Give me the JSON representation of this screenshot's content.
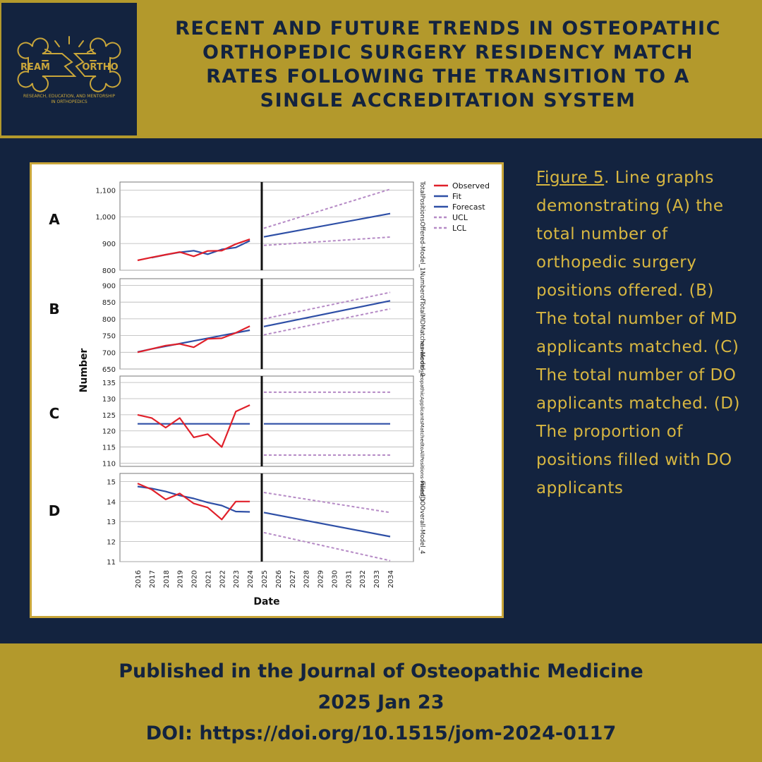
{
  "header": {
    "title_lines": [
      "RECENT AND FUTURE TRENDS IN OSTEOPATHIC",
      "ORTHOPEDIC SURGERY RESIDENCY MATCH",
      "RATES FOLLOWING THE TRANSITION TO A",
      "SINGLE ACCREDITATION SYSTEM"
    ]
  },
  "logo": {
    "left_word": "REAM",
    "right_word": "ORTHO",
    "tagline_1": "RESEARCH, EDUCATION, AND MENTORSHIP",
    "tagline_2": "IN ORTHOPEDICS"
  },
  "caption": {
    "figure_label": "Figure 5",
    "text": ". Line graphs demonstrating (A) the total number of orthopedic surgery positions offered. (B) The total number of MD applicants matched. (C) The total number of DO applicants matched. (D) The proportion of positions filled with DO applicants"
  },
  "footer": {
    "line1": "Published in the Journal of Osteopathic Medicine",
    "line2": "2025 Jan 23",
    "line3": "DOI: https://doi.org/10.1515/jom-2024-0117"
  },
  "colors": {
    "navy": "#13233f",
    "gold": "#b3992c",
    "caption_gold": "#d8b741",
    "observed": "#e0202a",
    "fit": "#2e4fa6",
    "limit": "#b68bc6"
  },
  "chart_data": {
    "type": "line",
    "xlabel": "Date",
    "ylabel": "Number",
    "x_ticks": [
      "2016",
      "2017",
      "2018",
      "2019",
      "2020",
      "2021",
      "2022",
      "2023",
      "2024",
      "2025",
      "2026",
      "2027",
      "2028",
      "2029",
      "2030",
      "2031",
      "2032",
      "2033",
      "2034"
    ],
    "legend": [
      "Observed",
      "Fit",
      "Forecast",
      "UCL",
      "LCL"
    ],
    "panels": [
      {
        "letter": "A",
        "model_label": "TotalPositionsOffered-Model_1",
        "ylim": [
          800,
          1130
        ],
        "yticks": [
          800,
          900,
          1000,
          1100
        ],
        "ytick_labels": [
          "800",
          "900",
          "1,000",
          "1,100"
        ],
        "observed": {
          "x": [
            2016,
            2017,
            2018,
            2019,
            2020,
            2021,
            2022,
            2023,
            2024
          ],
          "y": [
            837,
            848,
            858,
            868,
            852,
            872,
            873,
            898,
            916
          ]
        },
        "fit": {
          "x": [
            2017,
            2018,
            2019,
            2020,
            2021,
            2022,
            2023,
            2024
          ],
          "y": [
            847,
            858,
            867,
            873,
            860,
            878,
            885,
            910
          ]
        },
        "forecast": {
          "x": [
            2025,
            2034
          ],
          "y": [
            925,
            1012
          ]
        },
        "ucl": {
          "x": [
            2025,
            2034
          ],
          "y": [
            957,
            1103
          ]
        },
        "lcl": {
          "x": [
            2025,
            2034
          ],
          "y": [
            893,
            924
          ]
        }
      },
      {
        "letter": "B",
        "model_label": "NumberofTotalMDMatches-Model_2",
        "ylim": [
          650,
          920
        ],
        "yticks": [
          650,
          700,
          750,
          800,
          850,
          900
        ],
        "ytick_labels": [
          "650",
          "700",
          "750",
          "800",
          "850",
          "900"
        ],
        "observed": {
          "x": [
            2016,
            2017,
            2018,
            2019,
            2020,
            2021,
            2022,
            2023,
            2024
          ],
          "y": [
            700,
            710,
            720,
            725,
            715,
            740,
            742,
            758,
            778
          ]
        },
        "fit": {
          "x": [
            2016,
            2017,
            2018,
            2019,
            2020,
            2021,
            2022,
            2023,
            2024
          ],
          "y": [
            701,
            710,
            718,
            726,
            734,
            742,
            750,
            758,
            766
          ]
        },
        "forecast": {
          "x": [
            2025,
            2034
          ],
          "y": [
            777,
            854
          ]
        },
        "ucl": {
          "x": [
            2025,
            2034
          ],
          "y": [
            800,
            879
          ]
        },
        "lcl": {
          "x": [
            2025,
            2034
          ],
          "y": [
            752,
            830
          ]
        }
      },
      {
        "letter": "C",
        "model_label": "NumberofOsteopathicApplicantsMatchedtoAllPositions-Model_3",
        "ylim": [
          109,
          137
        ],
        "yticks": [
          110,
          115,
          120,
          125,
          130,
          135
        ],
        "ytick_labels": [
          "110",
          "115",
          "120",
          "125",
          "130",
          "135"
        ],
        "observed": {
          "x": [
            2016,
            2017,
            2018,
            2019,
            2020,
            2021,
            2022,
            2023,
            2024
          ],
          "y": [
            125,
            124,
            121,
            124,
            118,
            119,
            115,
            126,
            128
          ]
        },
        "fit": {
          "x": [
            2016,
            2024
          ],
          "y": [
            122.2,
            122.2
          ]
        },
        "forecast": {
          "x": [
            2025,
            2034
          ],
          "y": [
            122.2,
            122.2
          ]
        },
        "ucl": {
          "x": [
            2025,
            2034
          ],
          "y": [
            132,
            132
          ]
        },
        "lcl": {
          "x": [
            2025,
            2034
          ],
          "y": [
            112.5,
            112.5
          ]
        }
      },
      {
        "letter": "D",
        "model_label": "FilledDOOverall-Model_4",
        "ylim": [
          11,
          15.4
        ],
        "yticks": [
          11,
          12,
          13,
          14,
          15
        ],
        "ytick_labels": [
          "11",
          "12",
          "13",
          "14",
          "15"
        ],
        "observed": {
          "x": [
            2016,
            2017,
            2018,
            2019,
            2020,
            2021,
            2022,
            2023,
            2024
          ],
          "y": [
            14.9,
            14.6,
            14.1,
            14.4,
            13.9,
            13.7,
            13.1,
            14.0,
            14.0
          ]
        },
        "fit": {
          "x": [
            2016,
            2017,
            2018,
            2019,
            2020,
            2021,
            2022,
            2023,
            2024
          ],
          "y": [
            14.75,
            14.65,
            14.5,
            14.3,
            14.15,
            13.95,
            13.8,
            13.5,
            13.48
          ]
        },
        "forecast": {
          "x": [
            2025,
            2034
          ],
          "y": [
            13.45,
            12.25
          ]
        },
        "ucl": {
          "x": [
            2025,
            2034
          ],
          "y": [
            14.45,
            13.45
          ]
        },
        "lcl": {
          "x": [
            2025,
            2034
          ],
          "y": [
            12.45,
            11.05
          ]
        }
      }
    ]
  }
}
